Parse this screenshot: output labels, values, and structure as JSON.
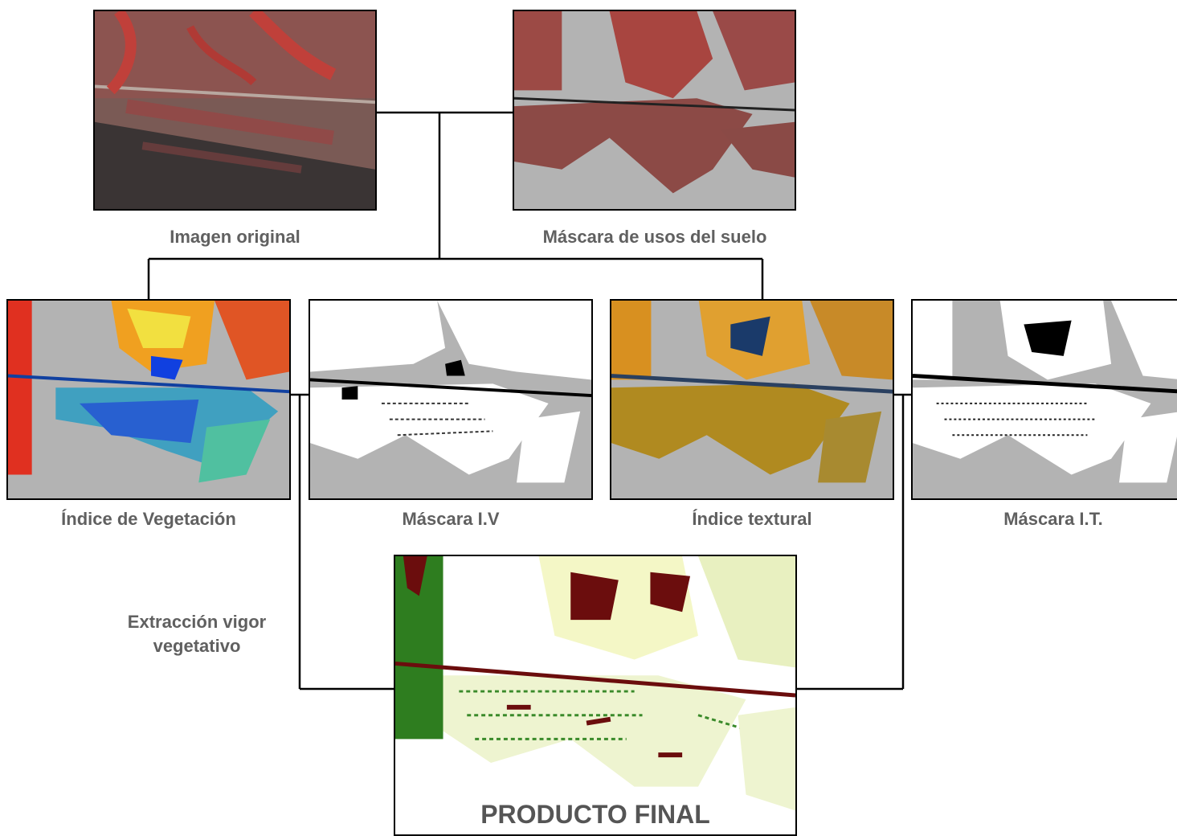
{
  "captions": {
    "original": "Imagen original",
    "land_use_mask": "Máscara de usos del suelo",
    "vegetation_index": "Índice de Vegetación",
    "vi_mask": "Máscara I.V",
    "texture_index": "Índice textural",
    "ti_mask": "Máscara I.T.",
    "extraction_line1": "Extracción vigor",
    "extraction_line2": "vegetativo",
    "final_product": "PRODUCTO FINAL"
  },
  "colors": {
    "caption_text": "#606060",
    "mask_gray": "#b3b3b3",
    "vegetation_red": "#a83a32",
    "dark_green": "#2e7d1f",
    "light_green": "#f4f7c6",
    "maroon": "#6b0d0d"
  }
}
